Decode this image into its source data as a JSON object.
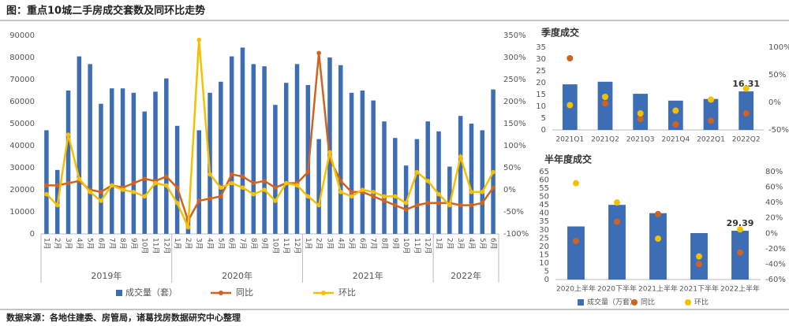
{
  "title": "图：重点10城二手房成交套数及同环比走势",
  "source": "数据来源：各地住建委、房管局，诸葛找房数据研究中心整理",
  "chart_data": [
    {
      "type": "combo",
      "categories": [
        "1月",
        "2月",
        "3月",
        "4月",
        "5月",
        "6月",
        "7月",
        "8月",
        "9月",
        "10月",
        "11月",
        "12月",
        "1月",
        "2月",
        "3月",
        "4月",
        "5月",
        "6月",
        "7月",
        "8月",
        "9月",
        "10月",
        "11月",
        "12月",
        "1月",
        "2月",
        "3月",
        "4月",
        "5月",
        "6月",
        "7月",
        "8月",
        "9月",
        "10月",
        "11月",
        "12月",
        "1月",
        "2月",
        "3月",
        "4月",
        "5月",
        "6月"
      ],
      "groups": [
        "2019年",
        "2020年",
        "2021年",
        "2022年"
      ],
      "ylim": [
        0,
        90000
      ],
      "yticks": [
        0,
        10000,
        20000,
        30000,
        40000,
        50000,
        60000,
        70000,
        80000,
        90000
      ],
      "y2lim": [
        -100,
        350
      ],
      "y2ticks": [
        {
          "value": -100,
          "label": "-100%"
        },
        {
          "value": -50,
          "label": "-50%"
        },
        {
          "value": 0,
          "label": "0%"
        },
        {
          "value": 50,
          "label": "50%"
        },
        {
          "value": 100,
          "label": "100%"
        },
        {
          "value": 150,
          "label": "150%"
        },
        {
          "value": 200,
          "label": "200%"
        },
        {
          "value": 250,
          "label": "250%"
        },
        {
          "value": 300,
          "label": "300%"
        },
        {
          "value": 350,
          "label": "350%"
        }
      ],
      "series": [
        {
          "name": "成交量（套）",
          "type": "bar",
          "color": "#3d6db5",
          "values": [
            47000,
            29000,
            65000,
            80500,
            77000,
            59000,
            66000,
            66000,
            64000,
            55500,
            64500,
            70500,
            49000,
            8000,
            47000,
            64000,
            69000,
            80500,
            84500,
            77000,
            76000,
            58500,
            68500,
            77000,
            67500,
            43000,
            80000,
            76500,
            64000,
            65000,
            60500,
            51000,
            43500,
            31000,
            43000,
            51000,
            46500,
            30500,
            53500,
            50000,
            47000,
            65500
          ]
        },
        {
          "name": "同比",
          "type": "line",
          "axis": "y2",
          "color": "#d0641e",
          "values": [
            10,
            10,
            15,
            20,
            0,
            -5,
            10,
            5,
            15,
            25,
            20,
            30,
            5,
            -70,
            -25,
            -20,
            -15,
            35,
            30,
            15,
            20,
            5,
            15,
            15,
            40,
            310,
            70,
            20,
            -5,
            -5,
            -15,
            -25,
            -35,
            -45,
            -35,
            -30,
            -30,
            -30,
            -35,
            -35,
            -30,
            5
          ]
        },
        {
          "name": "环比",
          "type": "line",
          "axis": "y2",
          "color": "#f5c000",
          "values": [
            -10,
            -35,
            125,
            25,
            -5,
            -25,
            10,
            0,
            -5,
            -15,
            15,
            10,
            -30,
            -85,
            340,
            35,
            5,
            15,
            5,
            -10,
            0,
            -25,
            15,
            10,
            -15,
            -35,
            85,
            -5,
            -15,
            0,
            -5,
            -15,
            -15,
            -30,
            40,
            20,
            -10,
            -35,
            75,
            -5,
            -5,
            40
          ]
        }
      ]
    },
    {
      "type": "combo",
      "title": "季度成交",
      "categories": [
        "2021Q1",
        "2021Q2",
        "2021Q3",
        "2021Q4",
        "2022Q1",
        "2022Q2"
      ],
      "ylim": [
        0,
        35
      ],
      "yticks": [
        0,
        5,
        10,
        15,
        20,
        25,
        30,
        35
      ],
      "y2lim": [
        -50,
        100
      ],
      "y2ticks": [
        {
          "value": -50,
          "label": "-50%"
        },
        {
          "value": 0,
          "label": "0%"
        },
        {
          "value": 50,
          "label": "50%"
        },
        {
          "value": 100,
          "label": "100%"
        }
      ],
      "series": [
        {
          "name": "成交量（万套）",
          "type": "bar",
          "color": "#3d6db5",
          "values": [
            19.3,
            20.4,
            15.3,
            12.4,
            13.1,
            16.31
          ],
          "value_labels": [
            null,
            null,
            null,
            null,
            null,
            "16.31"
          ]
        },
        {
          "name": "同比",
          "type": "scatter",
          "axis": "y2",
          "color": "#d0641e",
          "values": [
            80,
            -2,
            -30,
            -40,
            -33,
            -20
          ]
        },
        {
          "name": "环比",
          "type": "scatter",
          "axis": "y2",
          "color": "#f5c000",
          "values": [
            -5,
            10,
            -20,
            -15,
            5,
            25
          ]
        }
      ]
    },
    {
      "type": "combo",
      "title": "半年度成交",
      "categories": [
        "2020上半年",
        "2020下半年",
        "2021上半年",
        "2021下半年",
        "2022上半年"
      ],
      "ylim": [
        0,
        65
      ],
      "yticks": [
        0,
        5,
        10,
        15,
        20,
        25,
        30,
        35,
        40,
        45,
        50,
        55,
        60,
        65
      ],
      "y2lim": [
        -60,
        80
      ],
      "y2ticks": [
        {
          "value": -60,
          "label": "-60%"
        },
        {
          "value": -40,
          "label": "-40%"
        },
        {
          "value": -20,
          "label": "-20%"
        },
        {
          "value": 0,
          "label": "0%"
        },
        {
          "value": 20,
          "label": "20%"
        },
        {
          "value": 40,
          "label": "40%"
        },
        {
          "value": 60,
          "label": "60%"
        },
        {
          "value": 80,
          "label": "80%"
        }
      ],
      "series": [
        {
          "name": "成交量（万套）",
          "type": "bar",
          "color": "#3d6db5",
          "values": [
            32,
            45,
            40,
            28,
            29.39
          ],
          "value_labels": [
            null,
            null,
            null,
            null,
            "29.39"
          ]
        },
        {
          "name": "同比",
          "type": "scatter",
          "axis": "y2",
          "color": "#d0641e",
          "values": [
            -10,
            15,
            25,
            -40,
            -25
          ]
        },
        {
          "name": "环比",
          "type": "scatter",
          "axis": "y2",
          "color": "#f5c000",
          "values": [
            65,
            40,
            -7,
            -30,
            5
          ]
        }
      ]
    }
  ]
}
